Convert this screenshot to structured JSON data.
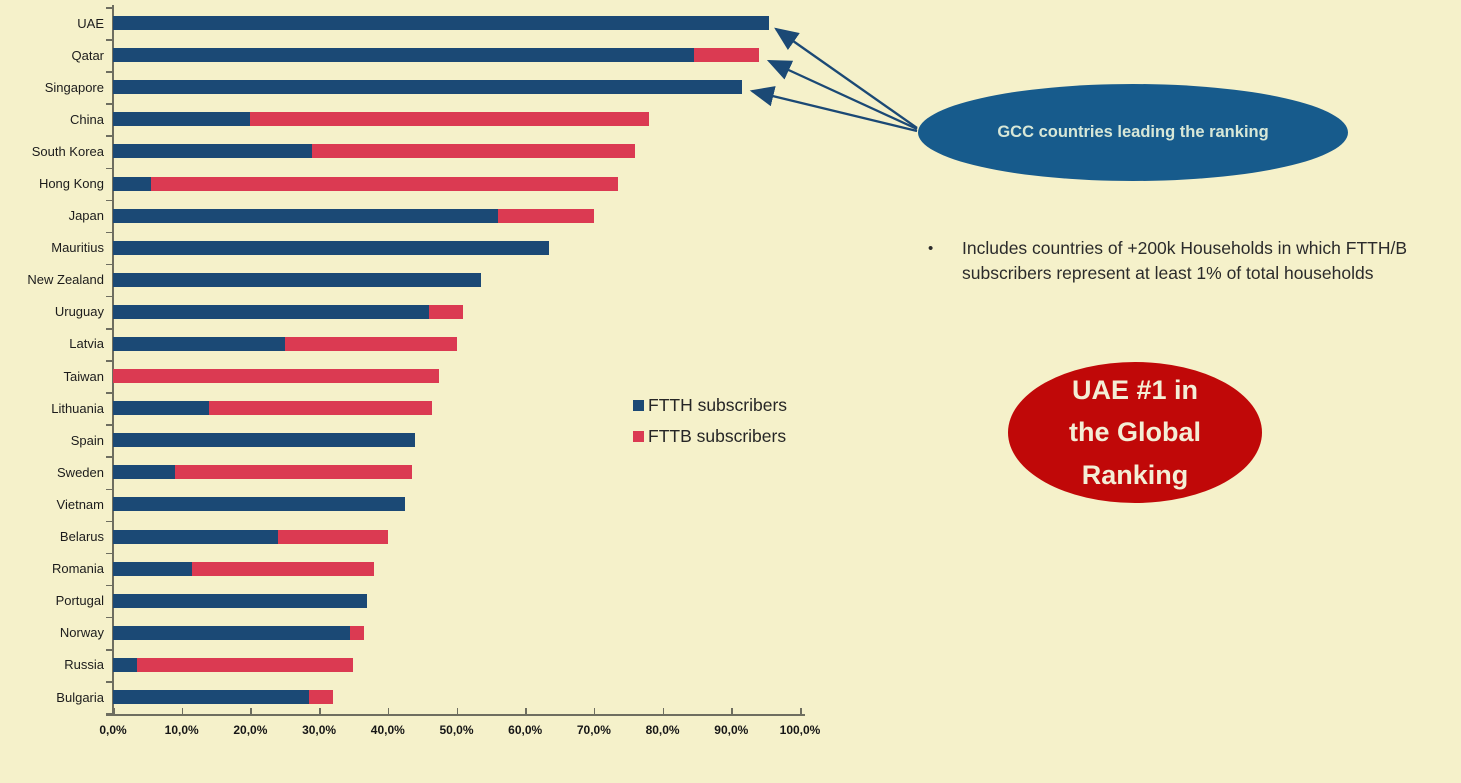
{
  "colors": {
    "background": "#F5F1CA",
    "ftth_blue": "#1B4975",
    "fttb_red": "#DB3A52",
    "axis": "#6e6e60",
    "blue_ellipse_bg": "#175B8C",
    "blue_ellipse_text": "#D7E7D7",
    "red_ellipse_bg": "#C00808",
    "red_ellipse_text": "#F3EED6",
    "arrow": "#1B4975"
  },
  "chart_data": {
    "type": "bar",
    "orientation": "horizontal",
    "stacked": true,
    "grid": false,
    "xlim": [
      0,
      100
    ],
    "x_ticks": [
      "0,0%",
      "10,0%",
      "20,0%",
      "30,0%",
      "40,0%",
      "50,0%",
      "60,0%",
      "70,0%",
      "80,0%",
      "90,0%",
      "100,0%"
    ],
    "x_tick_values": [
      0,
      10,
      20,
      30,
      40,
      50,
      60,
      70,
      80,
      90,
      100
    ],
    "legend_position": "center-right",
    "categories": [
      "UAE",
      "Qatar",
      "Singapore",
      "China",
      "South Korea",
      "Hong Kong",
      "Japan",
      "Mauritius",
      "New Zealand",
      "Uruguay",
      "Latvia",
      "Taiwan",
      "Lithuania",
      "Spain",
      "Sweden",
      "Vietnam",
      "Belarus",
      "Romania",
      "Portugal",
      "Norway",
      "Russia",
      "Bulgaria"
    ],
    "series": [
      {
        "name": "FTTH subscribers",
        "color": "#1B4975",
        "values": [
          95.5,
          84.5,
          91.5,
          20,
          29,
          5.5,
          56,
          63.5,
          53.5,
          46,
          25,
          0,
          14,
          44,
          9,
          42.5,
          24,
          11.5,
          37,
          34.5,
          3.5,
          28.5
        ]
      },
      {
        "name": "FTTB subscribers",
        "color": "#DB3A52",
        "values": [
          0,
          9.5,
          0,
          58,
          47,
          68,
          14,
          0,
          0,
          5,
          25,
          47.5,
          32.5,
          0,
          34.5,
          0,
          16,
          26.5,
          0,
          2,
          31.5,
          3.5
        ]
      }
    ]
  },
  "legend": {
    "items": [
      {
        "label": "FTTH subscribers",
        "color": "#1B4975",
        "marker": "square-icon"
      },
      {
        "label": "FTTB subscribers",
        "color": "#DB3A52",
        "marker": "square-icon"
      }
    ]
  },
  "annotations": {
    "blue_ellipse": {
      "text": "GCC countries leading the ranking"
    },
    "bullet_note": {
      "bullet": "•",
      "text": "Includes countries of +200k Households in which FTTH/B subscribers represent at least 1% of total households"
    },
    "red_ellipse": {
      "lines": [
        "UAE #1 in",
        "the Global",
        "Ranking"
      ]
    },
    "arrows_target": "top three bars (UAE, Qatar, Singapore)"
  }
}
